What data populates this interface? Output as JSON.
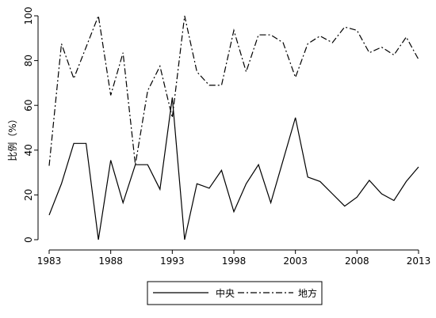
{
  "chart_data": {
    "type": "line",
    "title": "",
    "xlabel": "",
    "ylabel": "比例（%）",
    "xlim": [
      1983,
      2013
    ],
    "ylim": [
      0,
      100
    ],
    "xticks": [
      1983,
      1988,
      1993,
      1998,
      2003,
      2008,
      2013
    ],
    "yticks": [
      0,
      20,
      40,
      60,
      80,
      100
    ],
    "grid": false,
    "legend": "bottom",
    "x": [
      1983,
      1984,
      1985,
      1986,
      1987,
      1988,
      1989,
      1990,
      1991,
      1992,
      1993,
      1994,
      1995,
      1996,
      1997,
      1998,
      1999,
      2000,
      2001,
      2002,
      2003,
      2004,
      2005,
      2006,
      2007,
      2008,
      2009,
      2010,
      2011,
      2012,
      2013
    ],
    "series": [
      {
        "name": "中央",
        "style": "solid",
        "color": "#000000",
        "values": [
          11,
          25,
          43,
          43,
          0,
          35.5,
          16.5,
          33.5,
          33.5,
          22.5,
          63.5,
          0,
          25,
          23,
          31,
          12.5,
          25,
          33.5,
          16.5,
          35.5,
          54.5,
          28,
          26,
          20.5,
          15,
          19,
          26.5,
          20.5,
          17.5,
          26,
          32.5
        ]
      },
      {
        "name": "地方",
        "style": "dashdot",
        "color": "#000000",
        "values": [
          33,
          87.5,
          72,
          86,
          100,
          64.5,
          83.5,
          33.5,
          66.5,
          77.5,
          54.5,
          100,
          75,
          69,
          69,
          93.5,
          75,
          91.5,
          91.5,
          88,
          72.5,
          87.5,
          91,
          88,
          95,
          93.5,
          83.5,
          86,
          82.5,
          90.5,
          80.5
        ]
      }
    ]
  }
}
